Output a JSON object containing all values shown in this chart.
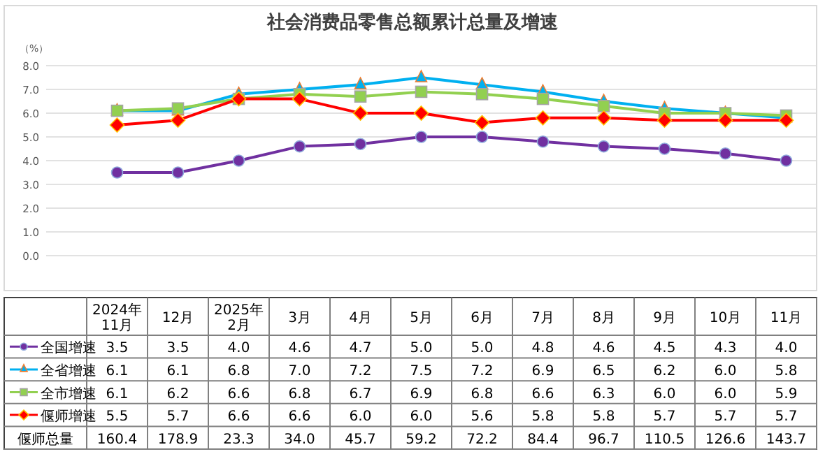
{
  "chart_data": {
    "type": "line",
    "title": "社会消费品零售总额累计总量及增速",
    "ylabel": "（%）",
    "categories": [
      "2024年\n11月",
      "12月",
      "2025年\n2月",
      "3月",
      "4月",
      "5月",
      "6月",
      "7月",
      "8月",
      "9月",
      "10月",
      "11月"
    ],
    "ylim": [
      0,
      8
    ],
    "yticks": [
      {
        "value": 0,
        "label": "0.0"
      },
      {
        "value": 1,
        "label": "1.0"
      },
      {
        "value": 2,
        "label": "2.0"
      },
      {
        "value": 3,
        "label": "3.0"
      },
      {
        "value": 4,
        "label": "4.0"
      },
      {
        "value": 5,
        "label": "5.0"
      },
      {
        "value": 6,
        "label": "6.0"
      },
      {
        "value": 7,
        "label": "7.0"
      },
      {
        "value": 8,
        "label": "8.0"
      }
    ],
    "grid": "y",
    "legend": "bottom",
    "series": [
      {
        "name": "全国增速",
        "color": "#7030a0",
        "marker": "circle",
        "values": [
          3.5,
          3.5,
          4.0,
          4.6,
          4.7,
          5.0,
          5.0,
          4.8,
          4.6,
          4.5,
          4.3,
          4.0
        ],
        "value_labels": [
          "3.5",
          "3.5",
          "4.0",
          "4.6",
          "4.7",
          "5.0",
          "5.0",
          "4.8",
          "4.6",
          "4.5",
          "4.3",
          "4.0"
        ]
      },
      {
        "name": "全省增速",
        "color": "#00b0f0",
        "marker": "triangle",
        "values": [
          6.1,
          6.1,
          6.8,
          7.0,
          7.2,
          7.5,
          7.2,
          6.9,
          6.5,
          6.2,
          6.0,
          5.8
        ],
        "value_labels": [
          "6.1",
          "6.1",
          "6.8",
          "7.0",
          "7.2",
          "7.5",
          "7.2",
          "6.9",
          "6.5",
          "6.2",
          "6.0",
          "5.8"
        ]
      },
      {
        "name": "全市增速",
        "color": "#92d050",
        "marker": "square",
        "values": [
          6.1,
          6.2,
          6.6,
          6.8,
          6.7,
          6.9,
          6.8,
          6.6,
          6.3,
          6.0,
          6.0,
          5.9
        ],
        "value_labels": [
          "6.1",
          "6.2",
          "6.6",
          "6.8",
          "6.7",
          "6.9",
          "6.8",
          "6.6",
          "6.3",
          "6.0",
          "6.0",
          "5.9"
        ]
      },
      {
        "name": "偃师增速",
        "color": "#ff0000",
        "marker": "diamond",
        "values": [
          5.5,
          5.7,
          6.6,
          6.6,
          6.0,
          6.0,
          5.6,
          5.8,
          5.8,
          5.7,
          5.7,
          5.7
        ],
        "value_labels": [
          "5.5",
          "5.7",
          "6.6",
          "6.6",
          "6.0",
          "6.0",
          "5.6",
          "5.8",
          "5.8",
          "5.7",
          "5.7",
          "5.7"
        ]
      }
    ],
    "annotations": [
      "偃师总量",
      "160.4",
      "178.9",
      "23.3",
      "34.0",
      "45.7",
      "59.2",
      "72.2",
      "84.4",
      "96.7",
      "110.5",
      "126.6",
      "143.7"
    ]
  }
}
